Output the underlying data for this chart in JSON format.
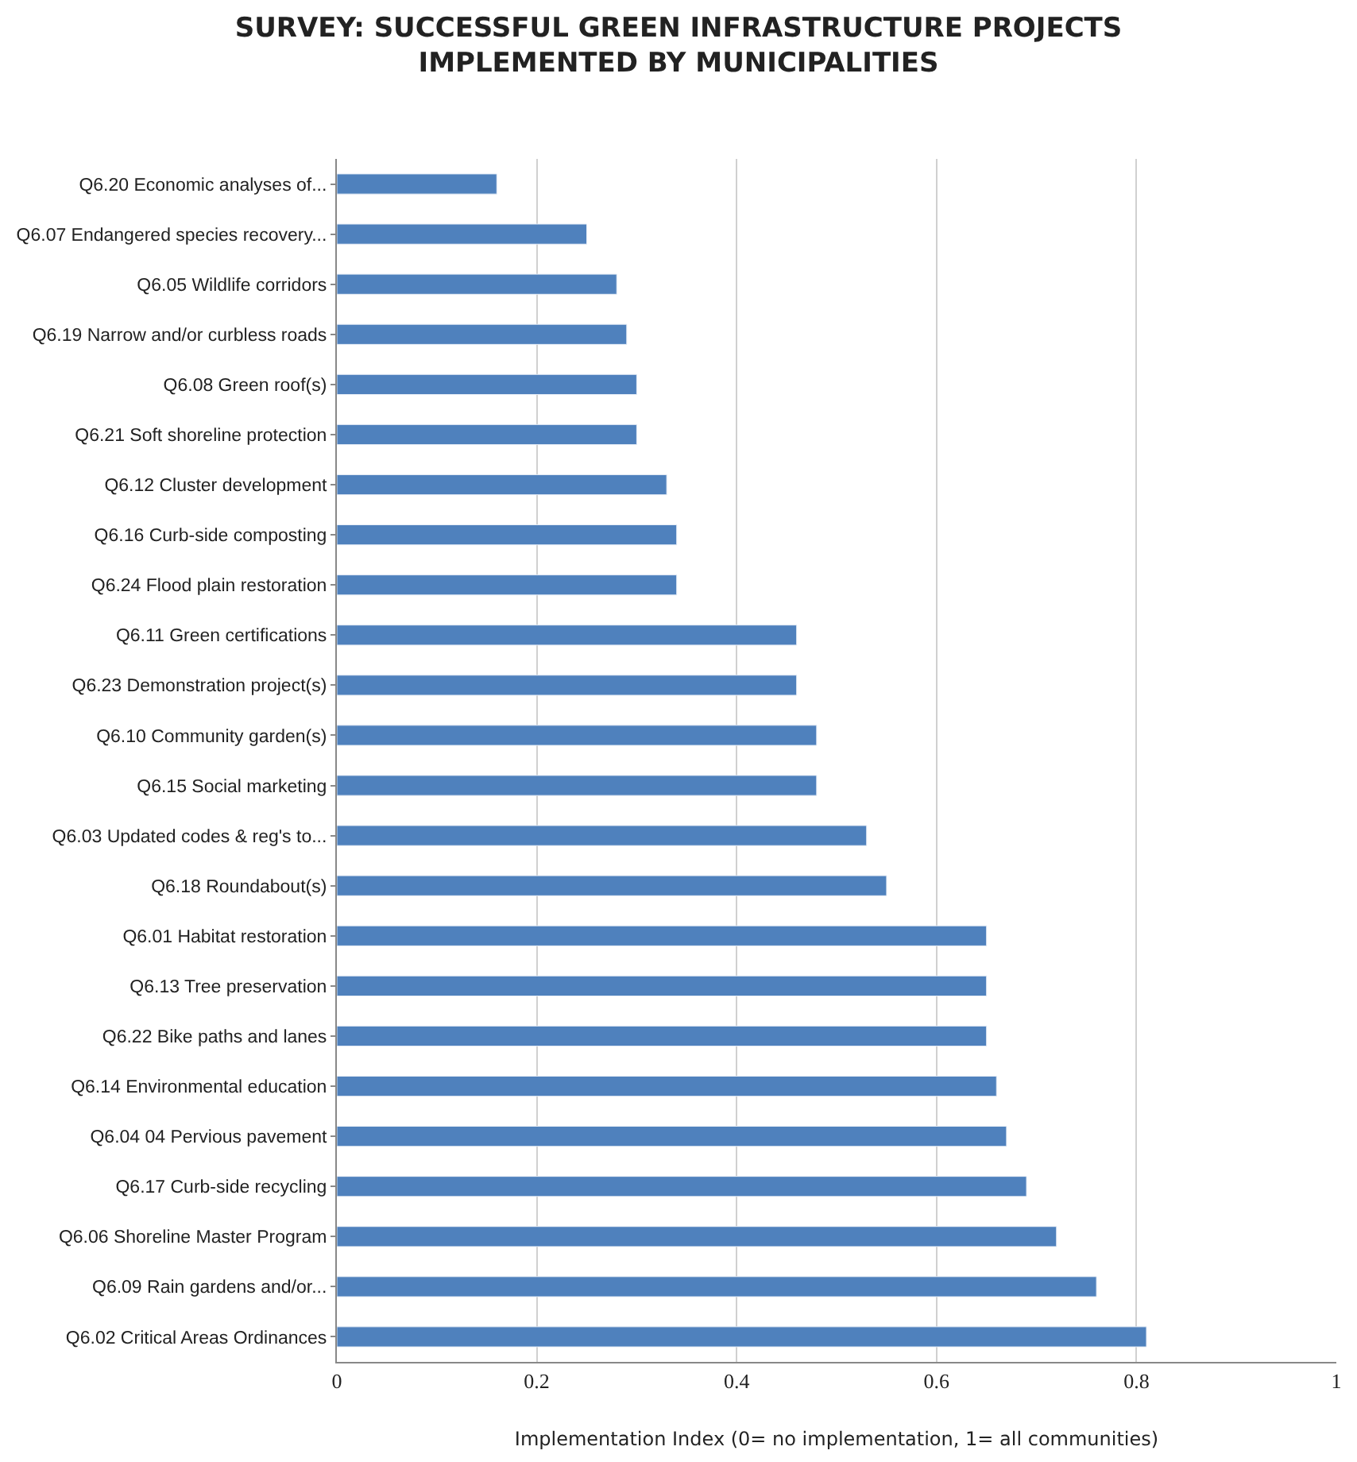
{
  "chart_data": {
    "type": "bar",
    "orientation": "horizontal",
    "title": "SURVEY: SUCCESSFUL GREEN INFRASTRUCTURE PROJECTS\nIMPLEMENTED BY MUNICIPALITIES",
    "xlabel": "Implementation Index (0= no implementation, 1= all communities)",
    "categories": [
      "Q6.20 Economic analyses of...",
      "Q6.07 Endangered species recovery...",
      "Q6.05 Wildlife corridors",
      "Q6.19 Narrow and/or curbless roads",
      "Q6.08 Green roof(s)",
      "Q6.21 Soft shoreline protection",
      "Q6.12 Cluster development",
      "Q6.16 Curb-side composting",
      "Q6.24 Flood plain restoration",
      "Q6.11 Green certifications",
      "Q6.23 Demonstration project(s)",
      "Q6.10 Community garden(s)",
      "Q6.15 Social marketing",
      "Q6.03 Updated codes & reg's to...",
      "Q6.18 Roundabout(s)",
      "Q6.01 Habitat restoration",
      "Q6.13 Tree preservation",
      "Q6.22 Bike paths and lanes",
      "Q6.14 Environmental education",
      "Q6.04 04 Pervious pavement",
      "Q6.17 Curb-side recycling",
      "Q6.06 Shoreline Master Program",
      "Q6.09 Rain gardens and/or...",
      "Q6.02 Critical Areas Ordinances"
    ],
    "values": [
      0.16,
      0.25,
      0.28,
      0.29,
      0.3,
      0.3,
      0.33,
      0.34,
      0.34,
      0.46,
      0.46,
      0.48,
      0.48,
      0.53,
      0.55,
      0.65,
      0.65,
      0.65,
      0.66,
      0.67,
      0.69,
      0.72,
      0.76,
      0.81
    ],
    "color": "#4f81bd",
    "xlim": [
      0,
      1
    ],
    "xticks": [
      0,
      0.2,
      0.4,
      0.6,
      0.8,
      1
    ],
    "grid": "x"
  }
}
